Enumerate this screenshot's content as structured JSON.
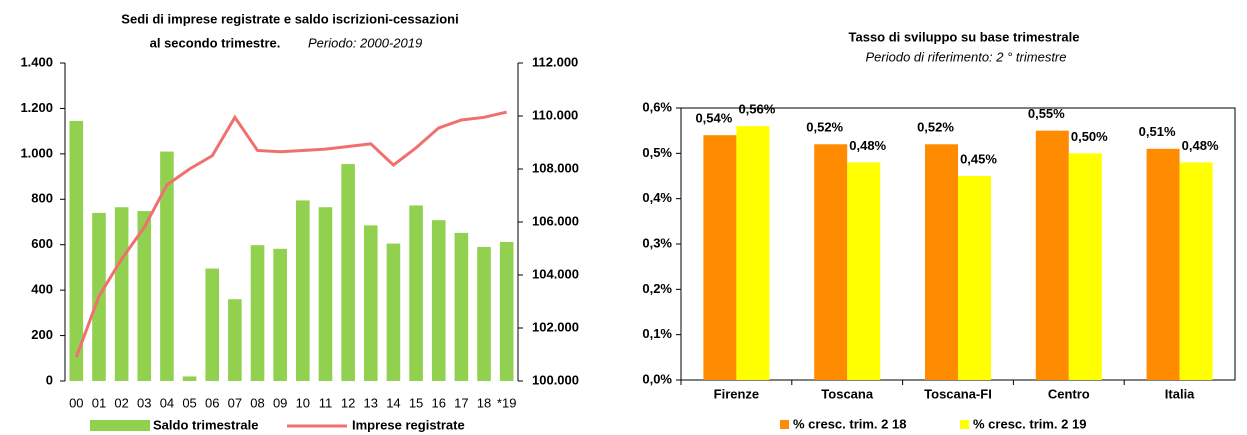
{
  "chart_data": [
    {
      "type": "bar-line",
      "title": [
        "Sedi di imprese registrate e saldo iscrizioni-cessazioni",
        "al secondo trimestre."
      ],
      "subtitle": "Periodo: 2000-2019",
      "categories": [
        "00",
        "01",
        "02",
        "03",
        "04",
        "05",
        "06",
        "07",
        "08",
        "09",
        "10",
        "11",
        "12",
        "13",
        "14",
        "15",
        "16",
        "17",
        "18",
        "*19"
      ],
      "series": [
        {
          "name": "Saldo trimestrale",
          "color": "#92d050",
          "kind": "bar",
          "axis": "y",
          "values": [
            1145,
            740,
            765,
            748,
            1010,
            20,
            495,
            360,
            598,
            582,
            795,
            765,
            955,
            685,
            605,
            773,
            708,
            652,
            590,
            612
          ]
        },
        {
          "name": "Imprese registrate",
          "color": "#f07070",
          "kind": "line",
          "axis": "y2",
          "values": [
            100900,
            103200,
            104600,
            105800,
            107400,
            108000,
            108500,
            109950,
            108700,
            108650,
            108700,
            108750,
            108850,
            108950,
            108150,
            108800,
            109550,
            109850,
            109950,
            110150
          ]
        }
      ],
      "ylim": [
        0,
        1400
      ],
      "yticks": [
        0,
        200,
        400,
        600,
        800,
        {
          "value": 1000,
          "label": "1.000"
        },
        {
          "value": 1200,
          "label": "1.200"
        },
        {
          "value": 1400,
          "label": "1.400"
        }
      ],
      "y2lim": [
        100000,
        112000
      ],
      "y2ticks": [
        {
          "value": 100000,
          "label": "100.000"
        },
        {
          "value": 102000,
          "label": "102.000"
        },
        {
          "value": 104000,
          "label": "104.000"
        },
        {
          "value": 106000,
          "label": "106.000"
        },
        {
          "value": 108000,
          "label": "108.000"
        },
        {
          "value": 110000,
          "label": "110.000"
        },
        {
          "value": 112000,
          "label": "112.000"
        }
      ]
    },
    {
      "type": "grouped-bar",
      "title": "Tasso di sviluppo su base trimestrale",
      "subtitle": "Periodo di riferimento: 2 ° trimestre",
      "categories": [
        "Firenze",
        "Toscana",
        "Toscana-FI",
        "Centro",
        "Italia"
      ],
      "series": [
        {
          "name": "% cresc. trim. 2  18",
          "color": "#ff8c00",
          "values": [
            0.54,
            0.52,
            0.52,
            0.55,
            0.51
          ],
          "value_labels": [
            "0,54%",
            "0,52%",
            "0,52%",
            "0,55%",
            "0,51%"
          ]
        },
        {
          "name": "% cresc. trim. 2  19",
          "color": "#ffff00",
          "values": [
            0.56,
            0.48,
            0.45,
            0.5,
            0.48
          ],
          "value_labels": [
            "0,56%",
            "0,48%",
            "0,45%",
            "0,50%",
            "0,48%"
          ]
        }
      ],
      "ylim": [
        0,
        0.6
      ],
      "yticks": [
        {
          "value": 0,
          "label": "0,0%"
        },
        {
          "value": 0.1,
          "label": "0,1%"
        },
        {
          "value": 0.2,
          "label": "0,2%"
        },
        {
          "value": 0.3,
          "label": "0,3%"
        },
        {
          "value": 0.4,
          "label": "0,4%"
        },
        {
          "value": 0.5,
          "label": "0,5%"
        },
        {
          "value": 0.6,
          "label": "0,6%"
        }
      ]
    }
  ]
}
